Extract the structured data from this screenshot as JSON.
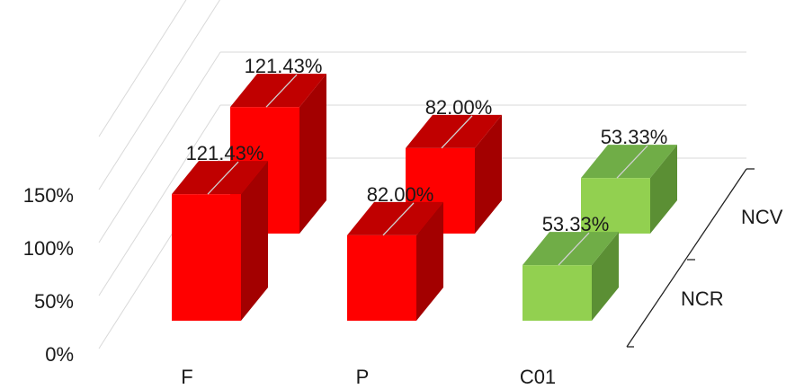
{
  "chart_data": {
    "type": "bar",
    "categories": [
      "F",
      "P",
      "C01"
    ],
    "series": [
      {
        "name": "NCR",
        "values": [
          121.43,
          82.0,
          53.33
        ],
        "labels": [
          "121.43%",
          "82.00%",
          "53.33%"
        ]
      },
      {
        "name": "NCV",
        "values": [
          121.43,
          82.0,
          53.33
        ],
        "labels": [
          "121.43%",
          "82.00%",
          "53.33%"
        ]
      }
    ],
    "yticks": [
      "0%",
      "50%",
      "100%",
      "150%"
    ],
    "ylim": [
      0,
      150
    ],
    "grid": true,
    "colors": {
      "F": {
        "front": "#ff0000",
        "top": "#c00000",
        "side": "#a30000"
      },
      "P": {
        "front": "#ff0000",
        "top": "#c00000",
        "side": "#a30000"
      },
      "C01": {
        "front": "#92d050",
        "top": "#70ad47",
        "side": "#5b8f34"
      }
    }
  }
}
